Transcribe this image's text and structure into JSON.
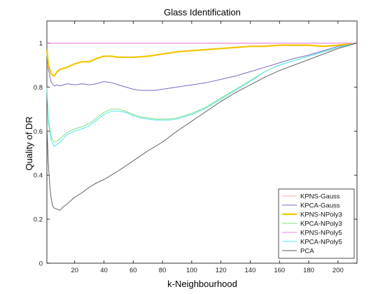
{
  "chart_data": {
    "type": "line",
    "title": "Glass Identification",
    "xlabel": "k-Neighbourhood",
    "ylabel": "Quality of DR",
    "xlim": [
      1,
      213
    ],
    "ylim": [
      0,
      1.1
    ],
    "xticks": [
      20,
      40,
      60,
      80,
      100,
      120,
      140,
      160,
      180,
      200
    ],
    "yticks": [
      0,
      0.2,
      0.4,
      0.6,
      0.8,
      1
    ],
    "ytick_labels": [
      "0",
      "0.2",
      "0.4",
      "0.6",
      "0.8",
      "1"
    ],
    "grid": false,
    "legend_position": "bottom-right",
    "series": [
      {
        "name": "KPNS-Gauss",
        "color": "#f4a9a0",
        "width": 1.0,
        "x": [
          1,
          20,
          60,
          100,
          140,
          180,
          213
        ],
        "y": [
          0.998,
          0.999,
          0.999,
          0.999,
          0.999,
          0.999,
          1.0
        ]
      },
      {
        "name": "KPCA-Gauss",
        "color": "#7b68c8",
        "width": 1.0,
        "x": [
          1,
          2,
          4,
          6,
          8,
          10,
          15,
          20,
          25,
          30,
          35,
          40,
          45,
          50,
          55,
          60,
          65,
          70,
          75,
          80,
          90,
          100,
          110,
          120,
          130,
          140,
          150,
          160,
          170,
          180,
          190,
          200,
          213
        ],
        "y": [
          0.95,
          0.88,
          0.82,
          0.805,
          0.81,
          0.805,
          0.815,
          0.81,
          0.815,
          0.81,
          0.815,
          0.825,
          0.82,
          0.81,
          0.8,
          0.79,
          0.785,
          0.785,
          0.785,
          0.79,
          0.8,
          0.81,
          0.82,
          0.835,
          0.85,
          0.87,
          0.89,
          0.91,
          0.93,
          0.945,
          0.965,
          0.985,
          1.0
        ]
      },
      {
        "name": "KPNS-NPoly3",
        "color": "#f5c400",
        "width": 2.2,
        "x": [
          1,
          2,
          4,
          6,
          8,
          10,
          15,
          20,
          25,
          30,
          35,
          40,
          45,
          50,
          60,
          70,
          80,
          90,
          100,
          110,
          120,
          130,
          140,
          150,
          160,
          170,
          180,
          190,
          200,
          213
        ],
        "y": [
          0.97,
          0.9,
          0.86,
          0.85,
          0.87,
          0.88,
          0.89,
          0.905,
          0.915,
          0.915,
          0.93,
          0.94,
          0.94,
          0.935,
          0.935,
          0.94,
          0.95,
          0.96,
          0.965,
          0.97,
          0.975,
          0.98,
          0.985,
          0.985,
          0.99,
          0.99,
          0.99,
          0.985,
          0.99,
          1.0
        ]
      },
      {
        "name": "KPCA-NPoly3",
        "color": "#7fe07f",
        "width": 1.0,
        "x": [
          1,
          2,
          4,
          6,
          8,
          10,
          15,
          20,
          25,
          30,
          35,
          40,
          45,
          50,
          55,
          60,
          65,
          70,
          75,
          80,
          85,
          90,
          95,
          100,
          110,
          120,
          130,
          140,
          150,
          160,
          170,
          180,
          190,
          200,
          213
        ],
        "y": [
          0.8,
          0.66,
          0.57,
          0.55,
          0.555,
          0.565,
          0.595,
          0.61,
          0.62,
          0.635,
          0.66,
          0.685,
          0.7,
          0.7,
          0.69,
          0.675,
          0.665,
          0.66,
          0.655,
          0.655,
          0.655,
          0.66,
          0.67,
          0.68,
          0.71,
          0.75,
          0.79,
          0.83,
          0.87,
          0.9,
          0.92,
          0.94,
          0.96,
          0.98,
          1.0
        ]
      },
      {
        "name": "KPNS-NPoly5",
        "color": "#f080e8",
        "width": 1.0,
        "x": [
          1,
          20,
          60,
          100,
          140,
          180,
          213
        ],
        "y": [
          0.999,
          0.999,
          0.999,
          0.999,
          0.999,
          0.999,
          1.0
        ]
      },
      {
        "name": "KPCA-NPoly5",
        "color": "#4fe6f0",
        "width": 1.0,
        "x": [
          1,
          2,
          4,
          6,
          8,
          10,
          15,
          20,
          25,
          30,
          35,
          40,
          45,
          50,
          55,
          60,
          65,
          70,
          75,
          80,
          85,
          90,
          95,
          100,
          110,
          120,
          130,
          140,
          150,
          160,
          170,
          180,
          190,
          200,
          213
        ],
        "y": [
          0.79,
          0.64,
          0.555,
          0.53,
          0.54,
          0.55,
          0.585,
          0.6,
          0.61,
          0.625,
          0.65,
          0.675,
          0.69,
          0.69,
          0.685,
          0.67,
          0.66,
          0.655,
          0.65,
          0.65,
          0.65,
          0.655,
          0.665,
          0.675,
          0.705,
          0.745,
          0.785,
          0.825,
          0.87,
          0.9,
          0.92,
          0.94,
          0.96,
          0.98,
          1.0
        ]
      },
      {
        "name": "PCA",
        "color": "#555555",
        "width": 0.9,
        "x": [
          1,
          2,
          3,
          4,
          5,
          6,
          8,
          10,
          12,
          15,
          20,
          25,
          30,
          35,
          40,
          50,
          60,
          70,
          80,
          90,
          100,
          110,
          120,
          130,
          140,
          150,
          160,
          170,
          180,
          190,
          200,
          213
        ],
        "y": [
          0.62,
          0.45,
          0.35,
          0.29,
          0.26,
          0.25,
          0.245,
          0.24,
          0.255,
          0.27,
          0.3,
          0.32,
          0.345,
          0.365,
          0.38,
          0.42,
          0.465,
          0.51,
          0.55,
          0.6,
          0.645,
          0.69,
          0.735,
          0.775,
          0.81,
          0.845,
          0.875,
          0.9,
          0.925,
          0.95,
          0.975,
          1.0
        ]
      }
    ]
  }
}
